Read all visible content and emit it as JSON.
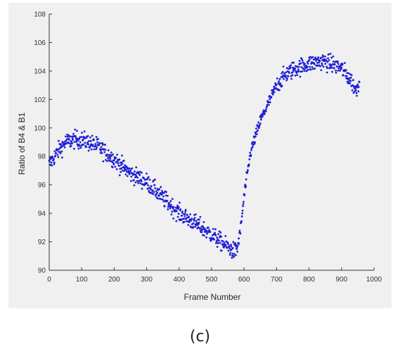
{
  "caption": "(c)",
  "chart_data": {
    "type": "scatter",
    "title": "",
    "xlabel": "Frame Number",
    "ylabel": "Ratio of B4 & B1",
    "xlim": [
      0,
      1000
    ],
    "ylim": [
      90,
      108
    ],
    "xticks": [
      0,
      100,
      200,
      300,
      400,
      500,
      600,
      700,
      800,
      900,
      1000
    ],
    "yticks": [
      90,
      92,
      94,
      96,
      98,
      100,
      102,
      104,
      106,
      108
    ],
    "grid": false,
    "marker_color": "#1f1fd6",
    "trend": [
      {
        "x": 0,
        "y": 97.4
      },
      {
        "x": 25,
        "y": 98.3
      },
      {
        "x": 50,
        "y": 99.0
      },
      {
        "x": 80,
        "y": 99.2
      },
      {
        "x": 110,
        "y": 99.1
      },
      {
        "x": 150,
        "y": 98.7
      },
      {
        "x": 200,
        "y": 97.8
      },
      {
        "x": 250,
        "y": 96.8
      },
      {
        "x": 300,
        "y": 96.2
      },
      {
        "x": 350,
        "y": 95.1
      },
      {
        "x": 400,
        "y": 94.0
      },
      {
        "x": 450,
        "y": 93.3
      },
      {
        "x": 500,
        "y": 92.5
      },
      {
        "x": 540,
        "y": 91.8
      },
      {
        "x": 570,
        "y": 91.3
      },
      {
        "x": 580,
        "y": 91.6
      },
      {
        "x": 590,
        "y": 93.0
      },
      {
        "x": 600,
        "y": 95.2
      },
      {
        "x": 620,
        "y": 98.3
      },
      {
        "x": 650,
        "y": 100.5
      },
      {
        "x": 680,
        "y": 102.0
      },
      {
        "x": 700,
        "y": 103.0
      },
      {
        "x": 730,
        "y": 103.8
      },
      {
        "x": 760,
        "y": 104.2
      },
      {
        "x": 800,
        "y": 104.5
      },
      {
        "x": 840,
        "y": 104.7
      },
      {
        "x": 870,
        "y": 104.5
      },
      {
        "x": 900,
        "y": 104.2
      },
      {
        "x": 930,
        "y": 103.3
      },
      {
        "x": 945,
        "y": 102.6
      },
      {
        "x": 955,
        "y": 103.4
      }
    ],
    "approx_point_count": 960,
    "approx_scatter": 0.45
  }
}
